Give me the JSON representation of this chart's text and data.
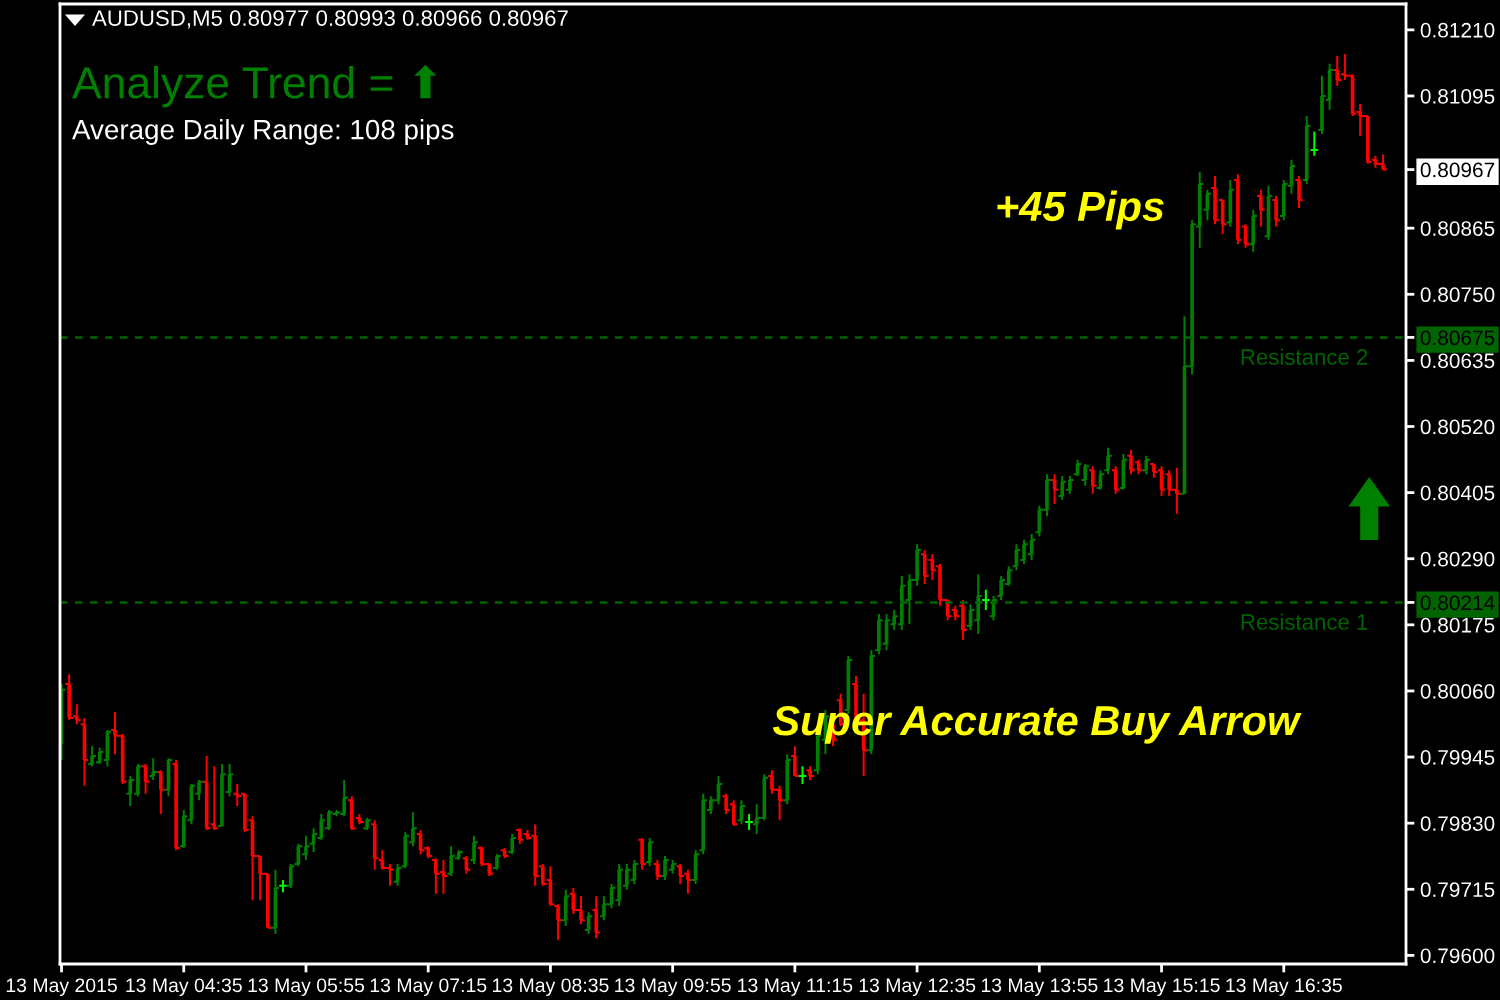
{
  "chart_data": {
    "type": "candlestick",
    "title": "AUDUSD,M5 0.80977 0.80993 0.80966 0.80967",
    "annotations": [
      "Analyze Trend = ⬆",
      "Average Daily Range: 108 pips",
      "+45 Pips",
      {
        "text": "Super Accurate Buy Arrow",
        "x": "2015-05-13T13:20",
        "y": 0.80176
      }
    ],
    "x": [
      "2015-05-13T03:15",
      "2015-05-13T03:20",
      "2015-05-13T03:25",
      "2015-05-13T03:30",
      "2015-05-13T03:35",
      "2015-05-13T03:40",
      "2015-05-13T03:45",
      "2015-05-13T03:50",
      "2015-05-13T03:55",
      "2015-05-13T04:00",
      "2015-05-13T04:05",
      "2015-05-13T04:10",
      "2015-05-13T04:15",
      "2015-05-13T04:20",
      "2015-05-13T04:25",
      "2015-05-13T04:30",
      "2015-05-13T04:35",
      "2015-05-13T04:40",
      "2015-05-13T04:45",
      "2015-05-13T04:50",
      "2015-05-13T04:55",
      "2015-05-13T05:00",
      "2015-05-13T05:05",
      "2015-05-13T05:10",
      "2015-05-13T05:15",
      "2015-05-13T05:20",
      "2015-05-13T05:25",
      "2015-05-13T05:30",
      "2015-05-13T05:35",
      "2015-05-13T05:40",
      "2015-05-13T05:45",
      "2015-05-13T05:50",
      "2015-05-13T05:55",
      "2015-05-13T06:00",
      "2015-05-13T06:05",
      "2015-05-13T06:10",
      "2015-05-13T06:15",
      "2015-05-13T06:20",
      "2015-05-13T06:25",
      "2015-05-13T06:30",
      "2015-05-13T06:35",
      "2015-05-13T06:40",
      "2015-05-13T06:45",
      "2015-05-13T06:50",
      "2015-05-13T06:55",
      "2015-05-13T07:00",
      "2015-05-13T07:05",
      "2015-05-13T07:10",
      "2015-05-13T07:15",
      "2015-05-13T07:20",
      "2015-05-13T07:25",
      "2015-05-13T07:30",
      "2015-05-13T07:35",
      "2015-05-13T07:40",
      "2015-05-13T07:45",
      "2015-05-13T07:50",
      "2015-05-13T07:55",
      "2015-05-13T08:00",
      "2015-05-13T08:05",
      "2015-05-13T08:10",
      "2015-05-13T08:15",
      "2015-05-13T08:20",
      "2015-05-13T08:25",
      "2015-05-13T08:30",
      "2015-05-13T08:35",
      "2015-05-13T08:40",
      "2015-05-13T08:45",
      "2015-05-13T08:50",
      "2015-05-13T08:55",
      "2015-05-13T09:00",
      "2015-05-13T09:05",
      "2015-05-13T09:10",
      "2015-05-13T09:15",
      "2015-05-13T09:20",
      "2015-05-13T09:25",
      "2015-05-13T09:30",
      "2015-05-13T09:35",
      "2015-05-13T09:40",
      "2015-05-13T09:45",
      "2015-05-13T09:50",
      "2015-05-13T09:55",
      "2015-05-13T10:00",
      "2015-05-13T10:05",
      "2015-05-13T10:10",
      "2015-05-13T10:15",
      "2015-05-13T10:20",
      "2015-05-13T10:25",
      "2015-05-13T10:30",
      "2015-05-13T10:35",
      "2015-05-13T10:40",
      "2015-05-13T10:45",
      "2015-05-13T10:50",
      "2015-05-13T10:55",
      "2015-05-13T11:00",
      "2015-05-13T11:05",
      "2015-05-13T11:10",
      "2015-05-13T11:15",
      "2015-05-13T11:20",
      "2015-05-13T11:25",
      "2015-05-13T11:30",
      "2015-05-13T11:35",
      "2015-05-13T11:40",
      "2015-05-13T11:45",
      "2015-05-13T11:50",
      "2015-05-13T11:55",
      "2015-05-13T12:00",
      "2015-05-13T12:05",
      "2015-05-13T12:10",
      "2015-05-13T12:15",
      "2015-05-13T12:20",
      "2015-05-13T12:25",
      "2015-05-13T12:30",
      "2015-05-13T12:35",
      "2015-05-13T12:40",
      "2015-05-13T12:45",
      "2015-05-13T12:50",
      "2015-05-13T12:55",
      "2015-05-13T13:00",
      "2015-05-13T13:05",
      "2015-05-13T13:10",
      "2015-05-13T13:15",
      "2015-05-13T13:20",
      "2015-05-13T13:25",
      "2015-05-13T13:30",
      "2015-05-13T13:35",
      "2015-05-13T13:40",
      "2015-05-13T13:45",
      "2015-05-13T13:50",
      "2015-05-13T13:55",
      "2015-05-13T14:00",
      "2015-05-13T14:05",
      "2015-05-13T14:10",
      "2015-05-13T14:15",
      "2015-05-13T14:20",
      "2015-05-13T14:25",
      "2015-05-13T14:30",
      "2015-05-13T14:35",
      "2015-05-13T14:40",
      "2015-05-13T14:45",
      "2015-05-13T14:50",
      "2015-05-13T14:55",
      "2015-05-13T15:00",
      "2015-05-13T15:05",
      "2015-05-13T15:10",
      "2015-05-13T15:15",
      "2015-05-13T15:20",
      "2015-05-13T15:25",
      "2015-05-13T15:30",
      "2015-05-13T15:35",
      "2015-05-13T15:40",
      "2015-05-13T15:45",
      "2015-05-13T15:50",
      "2015-05-13T15:55",
      "2015-05-13T16:00",
      "2015-05-13T16:05",
      "2015-05-13T16:10",
      "2015-05-13T16:15",
      "2015-05-13T16:20",
      "2015-05-13T16:25",
      "2015-05-13T16:30",
      "2015-05-13T16:35",
      "2015-05-13T16:40",
      "2015-05-13T16:45",
      "2015-05-13T16:50",
      "2015-05-13T16:55",
      "2015-05-13T17:00",
      "2015-05-13T17:05",
      "2015-05-13T17:10",
      "2015-05-13T17:15",
      "2015-05-13T17:20",
      "2015-05-13T17:25",
      "2015-05-13T17:30",
      "2015-05-13T17:35",
      "2015-05-13T17:40"
    ],
    "ohlc": [
      [
        0.79968,
        0.80072,
        0.7994,
        0.80062
      ],
      [
        0.80072,
        0.80089,
        0.80009,
        0.80013
      ],
      [
        0.80016,
        0.80037,
        0.80002,
        0.80009
      ],
      [
        0.80002,
        0.80013,
        0.79895,
        0.7994
      ],
      [
        0.79933,
        0.79964,
        0.79929,
        0.79947
      ],
      [
        0.79936,
        0.79961,
        0.79933,
        0.79954
      ],
      [
        0.7994,
        0.79992,
        0.79929,
        0.79989
      ],
      [
        0.79992,
        0.80023,
        0.7995,
        0.79982
      ],
      [
        0.79982,
        0.79985,
        0.79898,
        0.79902
      ],
      [
        0.79881,
        0.79912,
        0.7986,
        0.79905
      ],
      [
        0.79881,
        0.79933,
        0.79877,
        0.79929
      ],
      [
        0.79929,
        0.79933,
        0.79881,
        0.79902
      ],
      [
        0.79912,
        0.79943,
        0.79905,
        0.79919
      ],
      [
        0.79919,
        0.79922,
        0.79846,
        0.79888
      ],
      [
        0.79888,
        0.79943,
        0.79877,
        0.7994
      ],
      [
        0.79933,
        0.7994,
        0.79783,
        0.79787
      ],
      [
        0.7979,
        0.79853,
        0.79787,
        0.79842
      ],
      [
        0.79835,
        0.79898,
        0.79828,
        0.79895
      ],
      [
        0.79881,
        0.79905,
        0.7987,
        0.79902
      ],
      [
        0.79902,
        0.79947,
        0.79818,
        0.79821
      ],
      [
        0.79828,
        0.79929,
        0.79818,
        0.79821
      ],
      [
        0.79825,
        0.79933,
        0.79825,
        0.79915
      ],
      [
        0.79884,
        0.79933,
        0.79877,
        0.79915
      ],
      [
        0.79881,
        0.79898,
        0.7986,
        0.79877
      ],
      [
        0.79881,
        0.79881,
        0.79814,
        0.79818
      ],
      [
        0.79835,
        0.79842,
        0.79696,
        0.79773
      ],
      [
        0.79773,
        0.79773,
        0.79696,
        0.79742
      ],
      [
        0.79742,
        0.79742,
        0.79648,
        0.79648
      ],
      [
        0.79648,
        0.79749,
        0.79637,
        0.79717
      ],
      [
        0.79721,
        0.79731,
        0.7971,
        0.79721
      ],
      [
        0.79721,
        0.79759,
        0.79717,
        0.79755
      ],
      [
        0.79759,
        0.79794,
        0.79755,
        0.7979
      ],
      [
        0.79776,
        0.79808,
        0.79766,
        0.7979
      ],
      [
        0.79794,
        0.79821,
        0.7978,
        0.79811
      ],
      [
        0.79804,
        0.79846,
        0.79801,
        0.79835
      ],
      [
        0.79821,
        0.79853,
        0.79818,
        0.79849
      ],
      [
        0.79846,
        0.79853,
        0.79842,
        0.79849
      ],
      [
        0.79846,
        0.79905,
        0.79842,
        0.79874
      ],
      [
        0.7987,
        0.79877,
        0.79818,
        0.79821
      ],
      [
        0.79839,
        0.79846,
        0.79828,
        0.79832
      ],
      [
        0.79821,
        0.79839,
        0.79818,
        0.79835
      ],
      [
        0.79828,
        0.79835,
        0.79749,
        0.79769
      ],
      [
        0.79766,
        0.79783,
        0.79749,
        0.79752
      ],
      [
        0.79752,
        0.79759,
        0.79721,
        0.79749
      ],
      [
        0.79728,
        0.79759,
        0.79721,
        0.79752
      ],
      [
        0.79755,
        0.79814,
        0.79752,
        0.79808
      ],
      [
        0.79797,
        0.79849,
        0.7979,
        0.79821
      ],
      [
        0.79811,
        0.79818,
        0.79776,
        0.79783
      ],
      [
        0.79787,
        0.7979,
        0.79769,
        0.79773
      ],
      [
        0.79766,
        0.79769,
        0.79707,
        0.79742
      ],
      [
        0.79745,
        0.79766,
        0.79707,
        0.79738
      ],
      [
        0.79742,
        0.7979,
        0.79738,
        0.79773
      ],
      [
        0.79769,
        0.79783,
        0.79766,
        0.7978
      ],
      [
        0.79769,
        0.79773,
        0.79742,
        0.79749
      ],
      [
        0.79766,
        0.79808,
        0.79759,
        0.79797
      ],
      [
        0.79787,
        0.7979,
        0.79755,
        0.79759
      ],
      [
        0.79759,
        0.79759,
        0.79738,
        0.79742
      ],
      [
        0.79752,
        0.79776,
        0.79749,
        0.79773
      ],
      [
        0.79783,
        0.79787,
        0.79769,
        0.79773
      ],
      [
        0.7978,
        0.79811,
        0.79776,
        0.79804
      ],
      [
        0.79818,
        0.79821,
        0.79794,
        0.79801
      ],
      [
        0.79811,
        0.79818,
        0.79801,
        0.79804
      ],
      [
        0.79808,
        0.79828,
        0.79721,
        0.79738
      ],
      [
        0.79755,
        0.79759,
        0.79721,
        0.79724
      ],
      [
        0.79731,
        0.79755,
        0.79686,
        0.79689
      ],
      [
        0.79686,
        0.79689,
        0.79627,
        0.79661
      ],
      [
        0.79661,
        0.79714,
        0.79651,
        0.79703
      ],
      [
        0.79707,
        0.79717,
        0.79672,
        0.79679
      ],
      [
        0.79679,
        0.79703,
        0.79654,
        0.79661
      ],
      [
        0.79644,
        0.79675,
        0.79637,
        0.79668
      ],
      [
        0.79679,
        0.79703,
        0.7963,
        0.7964
      ],
      [
        0.79668,
        0.79703,
        0.79661,
        0.79689
      ],
      [
        0.79689,
        0.79724,
        0.79682,
        0.79717
      ],
      [
        0.79696,
        0.79759,
        0.79686,
        0.79749
      ],
      [
        0.79721,
        0.79759,
        0.79714,
        0.79749
      ],
      [
        0.79731,
        0.79766,
        0.79724,
        0.79759
      ],
      [
        0.79801,
        0.79804,
        0.79749,
        0.79759
      ],
      [
        0.79762,
        0.79804,
        0.79755,
        0.79797
      ],
      [
        0.79759,
        0.79766,
        0.79731,
        0.79738
      ],
      [
        0.79738,
        0.79773,
        0.79731,
        0.79766
      ],
      [
        0.79749,
        0.79766,
        0.79742,
        0.79759
      ],
      [
        0.79755,
        0.79759,
        0.79724,
        0.79738
      ],
      [
        0.79742,
        0.79749,
        0.79707,
        0.79731
      ],
      [
        0.79731,
        0.79783,
        0.79724,
        0.79776
      ],
      [
        0.79783,
        0.79881,
        0.79776,
        0.7987
      ],
      [
        0.79853,
        0.79877,
        0.79846,
        0.7987
      ],
      [
        0.7987,
        0.79912,
        0.79863,
        0.79898
      ],
      [
        0.79877,
        0.79881,
        0.79846,
        0.79853
      ],
      [
        0.79863,
        0.7987,
        0.79825,
        0.79828
      ],
      [
        0.79835,
        0.7987,
        0.79828,
        0.7986
      ],
      [
        0.79832,
        0.79846,
        0.79818,
        0.79832
      ],
      [
        0.79828,
        0.79863,
        0.79811,
        0.79839
      ],
      [
        0.79839,
        0.79915,
        0.79835,
        0.79909
      ],
      [
        0.79912,
        0.79922,
        0.79881,
        0.79888
      ],
      [
        0.79888,
        0.79895,
        0.79835,
        0.7987
      ],
      [
        0.7987,
        0.7995,
        0.79863,
        0.7994
      ],
      [
        0.79947,
        0.79964,
        0.79912,
        0.79912
      ],
      [
        0.79912,
        0.79929,
        0.79898,
        0.79912
      ],
      [
        0.79922,
        0.79929,
        0.79905,
        0.79912
      ],
      [
        0.79922,
        0.79985,
        0.79915,
        0.79982
      ],
      [
        0.79975,
        0.80027,
        0.7995,
        0.80016
      ],
      [
        0.80002,
        0.80009,
        0.79964,
        0.79975
      ],
      [
        0.80044,
        0.80055,
        0.79999,
        0.80002
      ],
      [
        0.80027,
        0.80121,
        0.8002,
        0.80114
      ],
      [
        0.80072,
        0.80086,
        0.80002,
        0.80002
      ],
      [
        0.80009,
        0.80055,
        0.79912,
        0.79957
      ],
      [
        0.79957,
        0.80131,
        0.7995,
        0.80121
      ],
      [
        0.80131,
        0.80194,
        0.80124,
        0.80183
      ],
      [
        0.80142,
        0.80194,
        0.80131,
        0.80183
      ],
      [
        0.80176,
        0.80201,
        0.80166,
        0.8019
      ],
      [
        0.80176,
        0.8026,
        0.80166,
        0.80243
      ],
      [
        0.80218,
        0.80263,
        0.80176,
        0.80253
      ],
      [
        0.80253,
        0.80315,
        0.80243,
        0.80305
      ],
      [
        0.80298,
        0.80305,
        0.80246,
        0.8026
      ],
      [
        0.80288,
        0.80298,
        0.80253,
        0.8027
      ],
      [
        0.80277,
        0.80281,
        0.80208,
        0.80218
      ],
      [
        0.80218,
        0.80218,
        0.80183,
        0.8019
      ],
      [
        0.80201,
        0.80208,
        0.80183,
        0.8019
      ],
      [
        0.80208,
        0.80218,
        0.80149,
        0.80166
      ],
      [
        0.80173,
        0.80211,
        0.80166,
        0.80201
      ],
      [
        0.80183,
        0.80263,
        0.80159,
        0.80225
      ],
      [
        0.80218,
        0.80236,
        0.80201,
        0.80218
      ],
      [
        0.8019,
        0.80225,
        0.80183,
        0.80218
      ],
      [
        0.80225,
        0.8026,
        0.80218,
        0.80253
      ],
      [
        0.80246,
        0.80277,
        0.80243,
        0.8027
      ],
      [
        0.80277,
        0.80315,
        0.8027,
        0.80305
      ],
      [
        0.80288,
        0.80323,
        0.80281,
        0.80315
      ],
      [
        0.80298,
        0.80333,
        0.80288,
        0.80323
      ],
      [
        0.80336,
        0.80382,
        0.80329,
        0.80375
      ],
      [
        0.80375,
        0.80437,
        0.80364,
        0.80427
      ],
      [
        0.80427,
        0.80437,
        0.80385,
        0.8041
      ],
      [
        0.80399,
        0.80434,
        0.80392,
        0.80424
      ],
      [
        0.8041,
        0.80434,
        0.80403,
        0.80427
      ],
      [
        0.80437,
        0.80462,
        0.80434,
        0.80455
      ],
      [
        0.80427,
        0.80455,
        0.80417,
        0.80451
      ],
      [
        0.80444,
        0.80451,
        0.80403,
        0.80417
      ],
      [
        0.80413,
        0.80444,
        0.8041,
        0.80437
      ],
      [
        0.80444,
        0.80483,
        0.80437,
        0.80469
      ],
      [
        0.80444,
        0.80451,
        0.80403,
        0.8041
      ],
      [
        0.80413,
        0.80472,
        0.8041,
        0.80462
      ],
      [
        0.80469,
        0.80479,
        0.80437,
        0.80444
      ],
      [
        0.80458,
        0.80462,
        0.80437,
        0.80444
      ],
      [
        0.80444,
        0.80469,
        0.80437,
        0.80462
      ],
      [
        0.80455,
        0.80455,
        0.80431,
        0.80441
      ],
      [
        0.80444,
        0.80451,
        0.80399,
        0.8041
      ],
      [
        0.80437,
        0.80444,
        0.80399,
        0.8041
      ],
      [
        0.8041,
        0.80448,
        0.80368,
        0.80403
      ],
      [
        0.80403,
        0.80712,
        0.80403,
        0.80625
      ],
      [
        0.80625,
        0.80879,
        0.80611,
        0.80872
      ],
      [
        0.80868,
        0.80963,
        0.80831,
        0.80942
      ],
      [
        0.80897,
        0.80932,
        0.80879,
        0.80925
      ],
      [
        0.80935,
        0.80956,
        0.80872,
        0.80879
      ],
      [
        0.80914,
        0.80914,
        0.80855,
        0.80872
      ],
      [
        0.80875,
        0.80949,
        0.80868,
        0.80932
      ],
      [
        0.80949,
        0.80959,
        0.80837,
        0.80845
      ],
      [
        0.80868,
        0.80872,
        0.80831,
        0.80837
      ],
      [
        0.80837,
        0.80897,
        0.80824,
        0.80886
      ],
      [
        0.80921,
        0.80932,
        0.80868,
        0.80897
      ],
      [
        0.80851,
        0.80939,
        0.80845,
        0.80921
      ],
      [
        0.80914,
        0.80921,
        0.80868,
        0.80879
      ],
      [
        0.80886,
        0.80949,
        0.80879,
        0.80942
      ],
      [
        0.80939,
        0.80984,
        0.80925,
        0.80973
      ],
      [
        0.80949,
        0.80956,
        0.809,
        0.80914
      ],
      [
        0.80949,
        0.8106,
        0.80942,
        0.81043
      ],
      [
        0.81001,
        0.81033,
        0.80991,
        0.81001
      ],
      [
        0.81036,
        0.8113,
        0.81029,
        0.81095
      ],
      [
        0.81088,
        0.81151,
        0.81071,
        0.8114
      ],
      [
        0.8114,
        0.81165,
        0.81113,
        0.81123
      ],
      [
        0.81133,
        0.81168,
        0.81123,
        0.8113
      ],
      [
        0.8113,
        0.81133,
        0.8106,
        0.81064
      ],
      [
        0.81067,
        0.81081,
        0.81026,
        0.8106
      ],
      [
        0.8106,
        0.8106,
        0.80977,
        0.8098
      ],
      [
        0.80984,
        0.80991,
        0.8097,
        0.80977
      ],
      [
        0.80977,
        0.80993,
        0.80966,
        0.80967
      ]
    ],
    "colors": [
      "#008000",
      "#ff0000",
      "#ff0000",
      "#ff0000",
      "#008000",
      "#008000",
      "#008000",
      "#ff0000",
      "#ff0000",
      "#008000",
      "#008000",
      "#ff0000",
      "#008000",
      "#ff0000",
      "#008000",
      "#ff0000",
      "#008000",
      "#008000",
      "#008000",
      "#ff0000",
      "#ff0000",
      "#008000",
      "#008000",
      "#ff0000",
      "#ff0000",
      "#ff0000",
      "#ff0000",
      "#ff0000",
      "#008000",
      "#00ff00",
      "#008000",
      "#008000",
      "#008000",
      "#008000",
      "#008000",
      "#008000",
      "#008000",
      "#008000",
      "#ff0000",
      "#ff0000",
      "#008000",
      "#ff0000",
      "#ff0000",
      "#ff0000",
      "#008000",
      "#008000",
      "#008000",
      "#ff0000",
      "#ff0000",
      "#ff0000",
      "#ff0000",
      "#008000",
      "#008000",
      "#ff0000",
      "#008000",
      "#ff0000",
      "#ff0000",
      "#008000",
      "#ff0000",
      "#008000",
      "#ff0000",
      "#ff0000",
      "#ff0000",
      "#ff0000",
      "#ff0000",
      "#ff0000",
      "#008000",
      "#ff0000",
      "#ff0000",
      "#008000",
      "#ff0000",
      "#008000",
      "#008000",
      "#008000",
      "#008000",
      "#008000",
      "#ff0000",
      "#008000",
      "#ff0000",
      "#008000",
      "#008000",
      "#ff0000",
      "#ff0000",
      "#008000",
      "#008000",
      "#008000",
      "#008000",
      "#ff0000",
      "#ff0000",
      "#008000",
      "#00ff00",
      "#008000",
      "#008000",
      "#ff0000",
      "#ff0000",
      "#008000",
      "#ff0000",
      "#00ff00",
      "#ff0000",
      "#008000",
      "#008000",
      "#ff0000",
      "#ff0000",
      "#008000",
      "#ff0000",
      "#ff0000",
      "#008000",
      "#008000",
      "#008000",
      "#008000",
      "#008000",
      "#008000",
      "#008000",
      "#ff0000",
      "#ff0000",
      "#ff0000",
      "#ff0000",
      "#ff0000",
      "#ff0000",
      "#008000",
      "#008000",
      "#00ff00",
      "#008000",
      "#008000",
      "#008000",
      "#008000",
      "#008000",
      "#008000",
      "#008000",
      "#008000",
      "#ff0000",
      "#008000",
      "#008000",
      "#008000",
      "#008000",
      "#ff0000",
      "#008000",
      "#008000",
      "#ff0000",
      "#008000",
      "#ff0000",
      "#ff0000",
      "#008000",
      "#ff0000",
      "#ff0000",
      "#ff0000",
      "#ff0000",
      "#008000",
      "#008000",
      "#008000",
      "#008000",
      "#ff0000",
      "#ff0000",
      "#008000",
      "#ff0000",
      "#ff0000",
      "#008000",
      "#ff0000",
      "#008000",
      "#ff0000",
      "#008000",
      "#008000",
      "#ff0000",
      "#008000",
      "#00ff00",
      "#008000",
      "#008000",
      "#ff0000",
      "#ff0000",
      "#ff0000",
      "#ff0000",
      "#ff0000",
      "#ff0000",
      "#ff0000"
    ],
    "xlim": [
      "2015-05-13T03:14",
      "2015-05-13T17:55"
    ],
    "xticks": [
      {
        "value": "2015-05-13T03:15",
        "label": "13 May 2015"
      },
      {
        "value": "2015-05-13T04:35",
        "label": "13 May 04:35"
      },
      {
        "value": "2015-05-13T05:55",
        "label": "13 May 05:55"
      },
      {
        "value": "2015-05-13T07:15",
        "label": "13 May 07:15"
      },
      {
        "value": "2015-05-13T08:35",
        "label": "13 May 08:35"
      },
      {
        "value": "2015-05-13T09:55",
        "label": "13 May 09:55"
      },
      {
        "value": "2015-05-13T11:15",
        "label": "13 May 11:15"
      },
      {
        "value": "2015-05-13T12:35",
        "label": "13 May 12:35"
      },
      {
        "value": "2015-05-13T13:55",
        "label": "13 May 13:55"
      },
      {
        "value": "2015-05-13T15:15",
        "label": "13 May 15:15"
      },
      {
        "value": "2015-05-13T16:35",
        "label": "13 May 16:35"
      }
    ],
    "ylim": [
      0.79585,
      0.81255
    ],
    "yticks": [
      {
        "value": 0.8121,
        "label": "0.81210"
      },
      0.81095,
      0.80967,
      0.80865,
      {
        "value": 0.8075,
        "label": "0.80750"
      },
      0.80675,
      0.80635,
      {
        "value": 0.8052,
        "label": "0.80520"
      },
      0.80405,
      {
        "value": 0.8029,
        "label": "0.80290"
      },
      0.80214,
      0.80175,
      {
        "value": 0.8006,
        "label": "0.80060"
      },
      0.79945,
      {
        "value": 0.7983,
        "label": "0.79830"
      },
      0.79715,
      {
        "value": 0.796,
        "label": "0.79600"
      }
    ],
    "ref_lines": [
      {
        "axis": "y",
        "value": 0.80675,
        "label": "Resistance 2",
        "color": "#006400",
        "line_style": "dashed"
      },
      {
        "axis": "y",
        "value": 0.80214,
        "label": "Resistance 1",
        "color": "#006400",
        "line_style": "dashed"
      }
    ]
  }
}
